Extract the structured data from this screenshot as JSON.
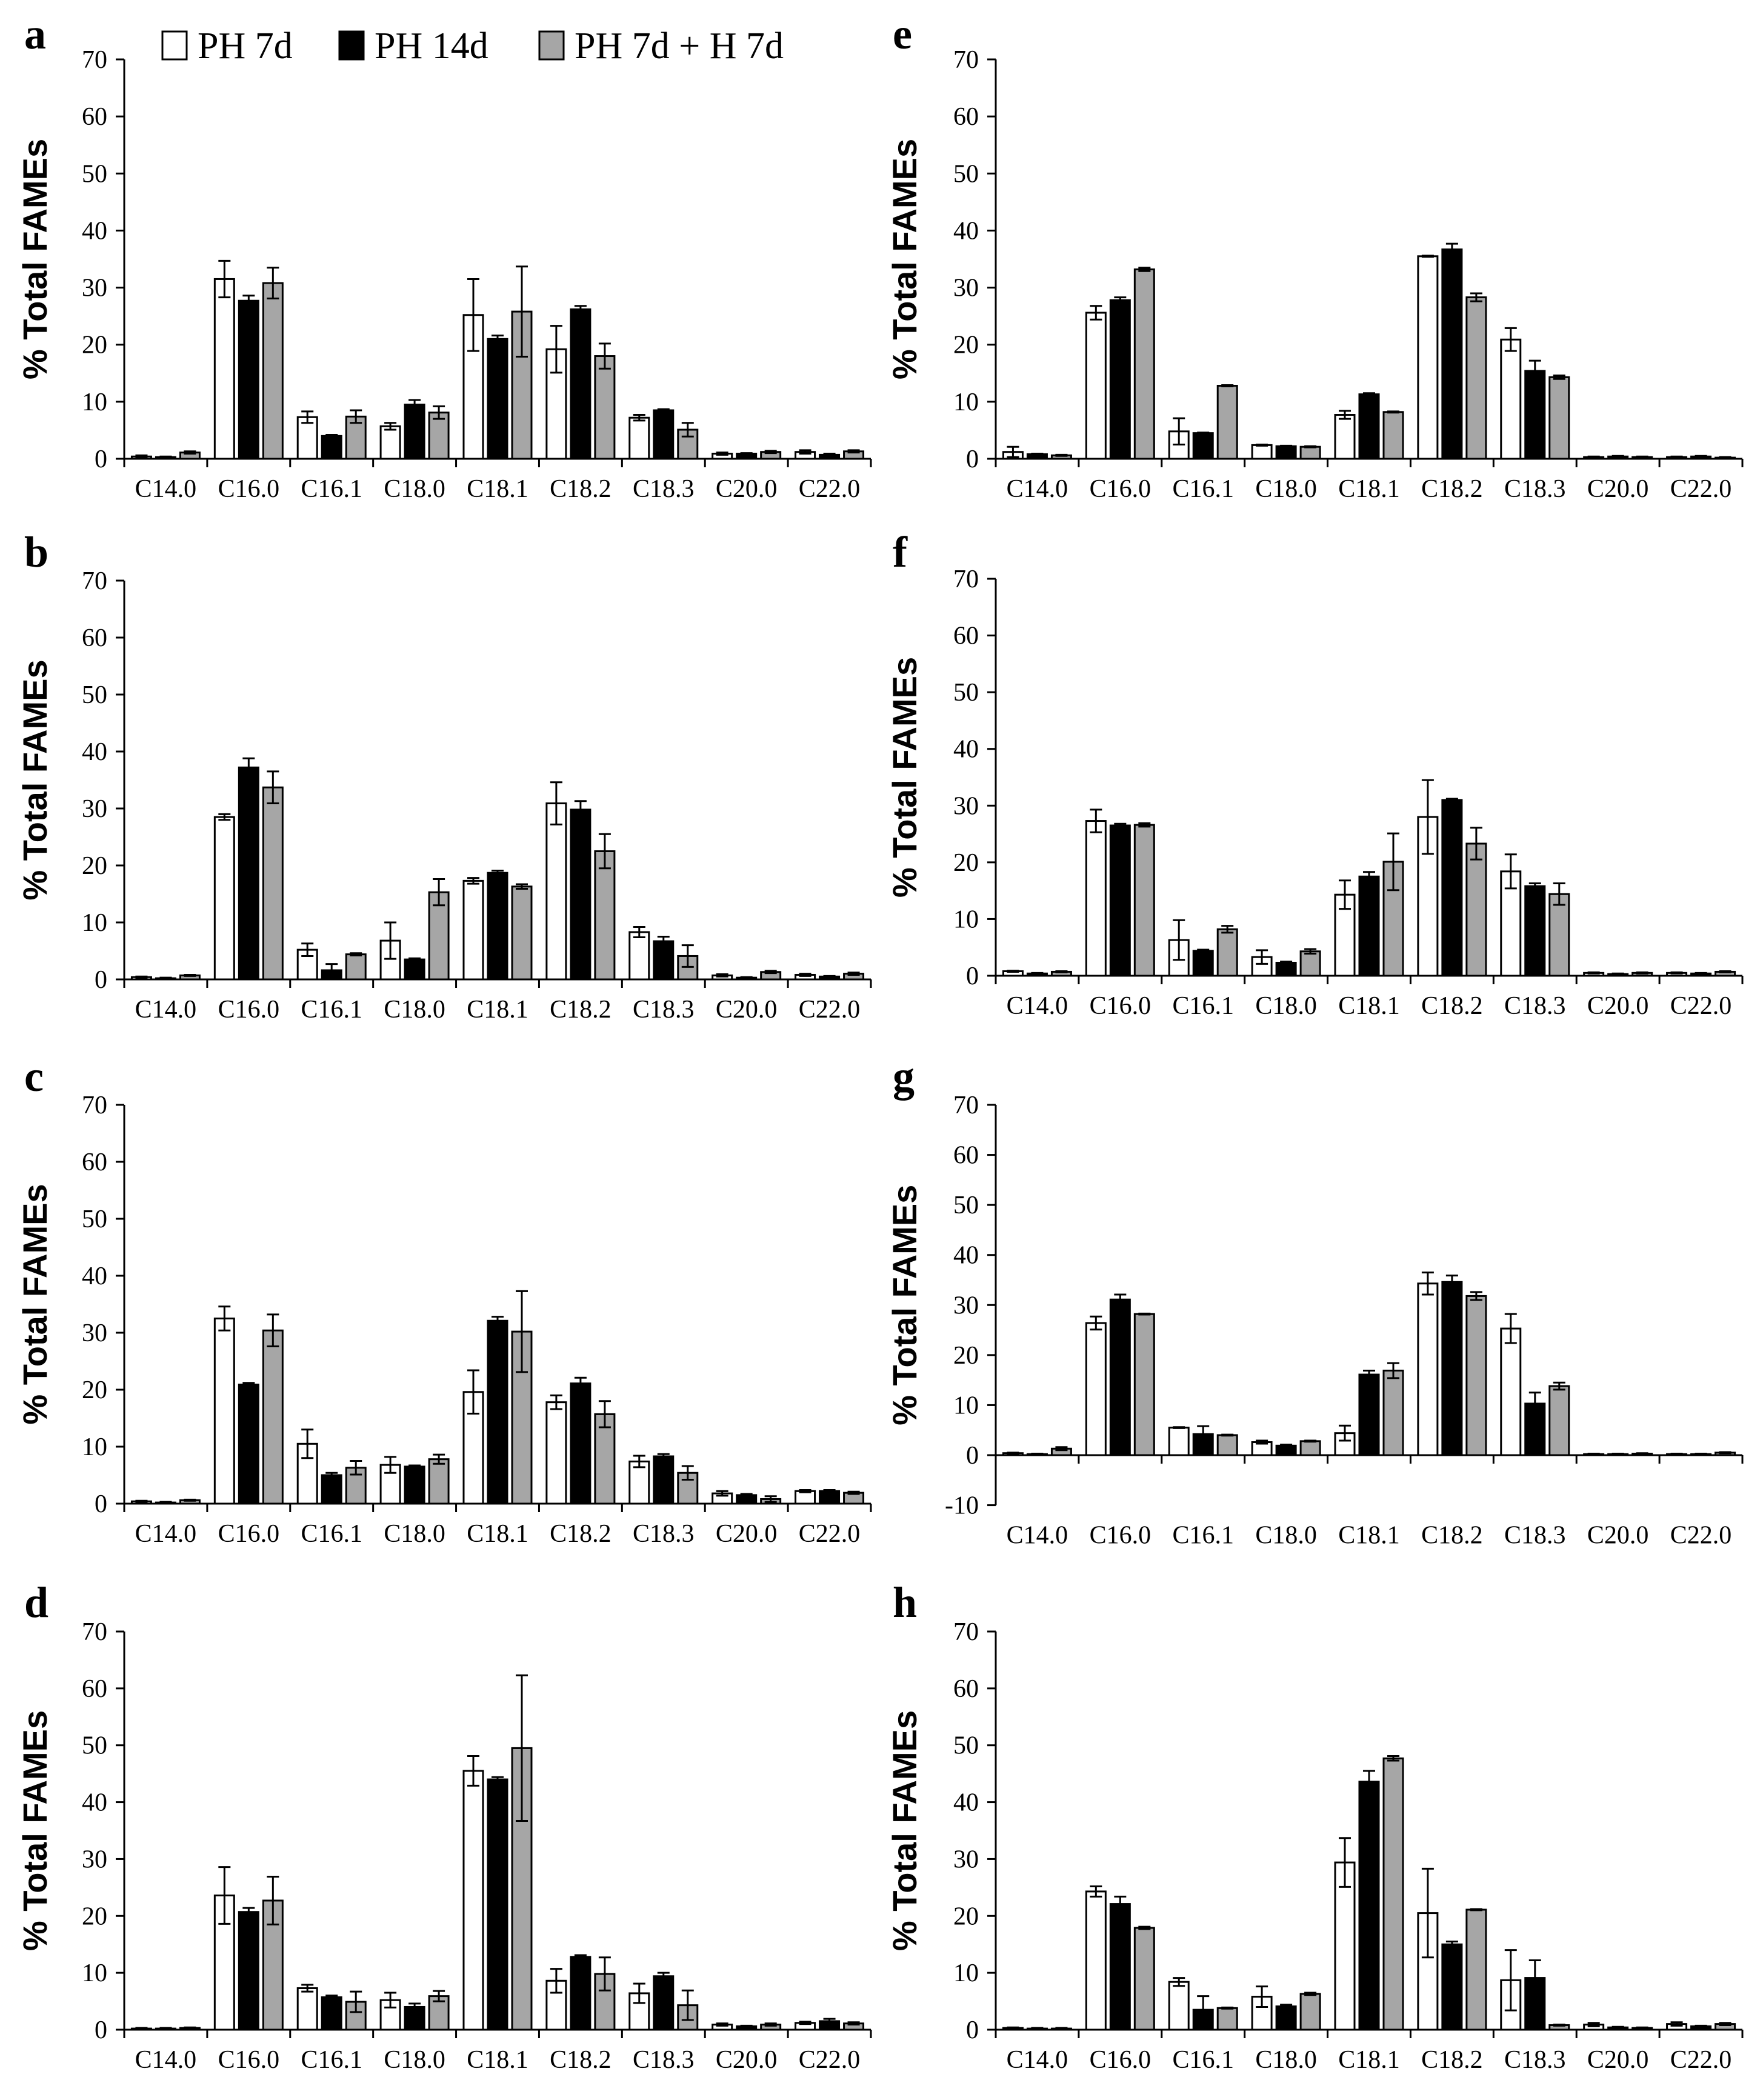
{
  "legend": {
    "series": [
      {
        "name": "PH 7d",
        "color": "#ffffff"
      },
      {
        "name": "PH 14d",
        "color": "#000000"
      },
      {
        "name": "PH 7d + H 7d",
        "color": "#a6a6a6"
      }
    ]
  },
  "chart_data": [
    {
      "panel": "a",
      "type": "bar",
      "categories": [
        "C14.0",
        "C16.0",
        "C16.1",
        "C18.0",
        "C18.1",
        "C18.2",
        "C18.3",
        "C20.0",
        "C22.0"
      ],
      "ylabel": "% Total FAMEs",
      "ylim": [
        0,
        70
      ],
      "yticks": [
        0,
        10,
        20,
        30,
        40,
        50,
        60,
        70
      ],
      "series": [
        {
          "name": "PH 7d",
          "values": [
            0.4,
            31.5,
            7.3,
            5.7,
            25.2,
            19.2,
            7.2,
            0.9,
            1.2
          ],
          "errors": [
            0.2,
            3.2,
            1.0,
            0.6,
            6.3,
            4.1,
            0.5,
            0.2,
            0.3
          ]
        },
        {
          "name": "PH 14d",
          "values": [
            0.3,
            27.7,
            4.0,
            9.5,
            21.0,
            26.2,
            8.5,
            0.9,
            0.7
          ],
          "errors": [
            0.1,
            0.9,
            0.2,
            0.8,
            0.6,
            0.6,
            0.2,
            0.1,
            0.2
          ]
        },
        {
          "name": "PH 7d + H 7d",
          "values": [
            1.1,
            30.8,
            7.4,
            8.1,
            25.8,
            18.0,
            5.1,
            1.2,
            1.3
          ],
          "errors": [
            0.2,
            2.7,
            1.1,
            1.1,
            7.9,
            2.2,
            1.2,
            0.2,
            0.2
          ]
        }
      ]
    },
    {
      "panel": "b",
      "type": "bar",
      "categories": [
        "C14.0",
        "C16.0",
        "C16.1",
        "C18.0",
        "C18.1",
        "C18.2",
        "C18.3",
        "C20.0",
        "C22.0"
      ],
      "ylabel": "% Total FAMEs",
      "ylim": [
        0,
        70
      ],
      "yticks": [
        0,
        10,
        20,
        30,
        40,
        50,
        60,
        70
      ],
      "series": [
        {
          "name": "PH 7d",
          "values": [
            0.4,
            28.5,
            5.2,
            6.8,
            17.3,
            30.9,
            8.3,
            0.7,
            0.8
          ],
          "errors": [
            0.1,
            0.5,
            1.1,
            3.2,
            0.5,
            3.7,
            0.9,
            0.2,
            0.2
          ]
        },
        {
          "name": "PH 14d",
          "values": [
            0.2,
            37.2,
            1.6,
            3.5,
            18.7,
            29.8,
            6.7,
            0.3,
            0.5
          ],
          "errors": [
            0.1,
            1.6,
            1.1,
            0.2,
            0.4,
            1.5,
            0.8,
            0.1,
            0.1
          ]
        },
        {
          "name": "PH 7d + H 7d",
          "values": [
            0.7,
            33.7,
            4.4,
            15.3,
            16.3,
            22.5,
            4.1,
            1.3,
            1.0
          ],
          "errors": [
            0.1,
            2.8,
            0.2,
            2.3,
            0.4,
            3.0,
            1.9,
            0.2,
            0.2
          ]
        }
      ]
    },
    {
      "panel": "c",
      "type": "bar",
      "categories": [
        "C14.0",
        "C16.0",
        "C16.1",
        "C18.0",
        "C18.1",
        "C18.2",
        "C18.3",
        "C20.0",
        "C22.0"
      ],
      "ylabel": "% Total FAMEs",
      "ylim": [
        0,
        70
      ],
      "yticks": [
        0,
        10,
        20,
        30,
        40,
        50,
        60,
        70
      ],
      "series": [
        {
          "name": "PH 7d",
          "values": [
            0.4,
            32.5,
            10.5,
            6.8,
            19.6,
            17.8,
            7.4,
            1.8,
            2.2
          ],
          "errors": [
            0.1,
            2.1,
            2.5,
            1.4,
            3.8,
            1.2,
            1.0,
            0.4,
            0.2
          ]
        },
        {
          "name": "PH 14d",
          "values": [
            0.2,
            20.9,
            5.0,
            6.5,
            32.1,
            21.1,
            8.3,
            1.5,
            2.2
          ],
          "errors": [
            0.1,
            0.3,
            0.4,
            0.2,
            0.7,
            1.0,
            0.4,
            0.2,
            0.2
          ]
        },
        {
          "name": "PH 7d + H 7d",
          "values": [
            0.6,
            30.4,
            6.3,
            7.8,
            30.2,
            15.7,
            5.4,
            0.8,
            1.9
          ],
          "errors": [
            0.1,
            2.8,
            1.2,
            0.8,
            7.1,
            2.3,
            1.2,
            0.5,
            0.2
          ]
        }
      ]
    },
    {
      "panel": "d",
      "type": "bar",
      "categories": [
        "C14.0",
        "C16.0",
        "C16.1",
        "C18.0",
        "C18.1",
        "C18.2",
        "C18.3",
        "C20.0",
        "C22.0"
      ],
      "ylabel": "% Total FAMEs",
      "ylim": [
        0,
        70
      ],
      "yticks": [
        0,
        10,
        20,
        30,
        40,
        50,
        60,
        70
      ],
      "series": [
        {
          "name": "PH 7d",
          "values": [
            0.2,
            23.6,
            7.3,
            5.2,
            45.5,
            8.6,
            6.4,
            0.9,
            1.2
          ],
          "errors": [
            0.1,
            5.0,
            0.6,
            1.3,
            2.6,
            2.1,
            1.7,
            0.2,
            0.2
          ]
        },
        {
          "name": "PH 14d",
          "values": [
            0.2,
            20.7,
            5.7,
            4.0,
            44.0,
            12.8,
            9.4,
            0.6,
            1.5
          ],
          "errors": [
            0.1,
            0.7,
            0.3,
            0.6,
            0.4,
            0.3,
            0.6,
            0.1,
            0.4
          ]
        },
        {
          "name": "PH 7d + H 7d",
          "values": [
            0.3,
            22.7,
            4.9,
            5.9,
            49.5,
            9.8,
            4.3,
            0.9,
            1.1
          ],
          "errors": [
            0.1,
            4.2,
            1.8,
            0.9,
            12.8,
            2.9,
            2.6,
            0.2,
            0.2
          ]
        }
      ]
    },
    {
      "panel": "e",
      "type": "bar",
      "categories": [
        "C14.0",
        "C16.0",
        "C16.1",
        "C18.0",
        "C18.1",
        "C18.2",
        "C18.3",
        "C20.0",
        "C22.0"
      ],
      "ylabel": "% Total FAMEs",
      "ylim": [
        0,
        70
      ],
      "yticks": [
        0,
        10,
        20,
        30,
        40,
        50,
        60,
        70
      ],
      "series": [
        {
          "name": "PH 7d",
          "values": [
            1.2,
            25.6,
            4.8,
            2.4,
            7.7,
            35.5,
            20.9,
            0.3,
            0.3
          ],
          "errors": [
            0.9,
            1.2,
            2.3,
            0.1,
            0.7,
            0.1,
            2.0,
            0.1,
            0.1
          ]
        },
        {
          "name": "PH 14d",
          "values": [
            0.8,
            27.8,
            4.5,
            2.2,
            11.3,
            36.7,
            15.4,
            0.4,
            0.4
          ],
          "errors": [
            0.1,
            0.5,
            0.1,
            0.1,
            0.2,
            1.0,
            1.8,
            0.1,
            0.1
          ]
        },
        {
          "name": "PH 7d + H 7d",
          "values": [
            0.6,
            33.2,
            12.8,
            2.1,
            8.2,
            28.3,
            14.3,
            0.3,
            0.2
          ],
          "errors": [
            0.1,
            0.3,
            0.1,
            0.1,
            0.1,
            0.7,
            0.3,
            0.1,
            0.1
          ]
        }
      ]
    },
    {
      "panel": "f",
      "type": "bar",
      "categories": [
        "C14.0",
        "C16.0",
        "C16.1",
        "C18.0",
        "C18.1",
        "C18.2",
        "C18.3",
        "C20.0",
        "C22.0"
      ],
      "ylabel": "% Total FAMEs",
      "ylim": [
        0,
        70
      ],
      "yticks": [
        0,
        10,
        20,
        30,
        40,
        50,
        60,
        70
      ],
      "series": [
        {
          "name": "PH 7d",
          "values": [
            0.8,
            27.3,
            6.3,
            3.3,
            14.3,
            28.0,
            18.4,
            0.5,
            0.5
          ],
          "errors": [
            0.1,
            2.0,
            3.5,
            1.2,
            2.5,
            6.5,
            3.0,
            0.1,
            0.1
          ]
        },
        {
          "name": "PH 14d",
          "values": [
            0.4,
            26.5,
            4.4,
            2.3,
            17.5,
            31.0,
            15.8,
            0.3,
            0.4
          ],
          "errors": [
            0.1,
            0.3,
            0.2,
            0.2,
            0.8,
            0.2,
            0.5,
            0.1,
            0.1
          ]
        },
        {
          "name": "PH 7d + H 7d",
          "values": [
            0.7,
            26.6,
            8.2,
            4.3,
            20.1,
            23.3,
            14.4,
            0.5,
            0.7
          ],
          "errors": [
            0.1,
            0.3,
            0.6,
            0.4,
            5.0,
            2.8,
            1.9,
            0.1,
            0.1
          ]
        }
      ]
    },
    {
      "panel": "g",
      "type": "bar",
      "categories": [
        "C14.0",
        "C16.0",
        "C16.1",
        "C18.0",
        "C18.1",
        "C18.2",
        "C18.3",
        "C20.0",
        "C22.0"
      ],
      "ylabel": "% Total FAMEs",
      "ylim": [
        -10,
        70
      ],
      "yticks": [
        -10,
        0,
        10,
        20,
        30,
        40,
        50,
        60,
        70
      ],
      "series": [
        {
          "name": "PH 7d",
          "values": [
            0.4,
            26.4,
            5.5,
            2.6,
            4.4,
            34.3,
            25.3,
            0.2,
            0.2
          ],
          "errors": [
            0.1,
            1.3,
            0.1,
            0.3,
            1.5,
            2.2,
            2.9,
            0.1,
            0.1
          ]
        },
        {
          "name": "PH 14d",
          "values": [
            0.2,
            31.1,
            4.2,
            1.9,
            16.1,
            34.6,
            10.3,
            0.2,
            0.2
          ],
          "errors": [
            0.1,
            1.0,
            1.6,
            0.2,
            0.8,
            1.3,
            2.2,
            0.1,
            0.1
          ]
        },
        {
          "name": "PH 7d + H 7d",
          "values": [
            1.3,
            28.2,
            4.0,
            2.8,
            16.9,
            31.8,
            13.8,
            0.3,
            0.5
          ],
          "errors": [
            0.3,
            0.1,
            0.1,
            0.1,
            1.5,
            0.8,
            0.7,
            0.1,
            0.1
          ]
        }
      ]
    },
    {
      "panel": "h",
      "type": "bar",
      "categories": [
        "C14.0",
        "C16.0",
        "C16.1",
        "C18.0",
        "C18.1",
        "C18.2",
        "C18.3",
        "C20.0",
        "C22.0"
      ],
      "ylabel": "% Total FAMEs",
      "ylim": [
        0,
        70
      ],
      "yticks": [
        0,
        10,
        20,
        30,
        40,
        50,
        60,
        70
      ],
      "series": [
        {
          "name": "PH 7d",
          "values": [
            0.3,
            24.3,
            8.4,
            5.8,
            29.4,
            20.5,
            8.7,
            0.9,
            1.0
          ],
          "errors": [
            0.1,
            0.9,
            0.7,
            1.8,
            4.3,
            7.8,
            5.3,
            0.3,
            0.3
          ]
        },
        {
          "name": "PH 14d",
          "values": [
            0.2,
            22.1,
            3.5,
            4.1,
            43.6,
            15.0,
            9.1,
            0.4,
            0.6
          ],
          "errors": [
            0.1,
            1.3,
            2.4,
            0.3,
            1.9,
            0.5,
            3.1,
            0.1,
            0.1
          ]
        },
        {
          "name": "PH 7d + H 7d",
          "values": [
            0.2,
            17.9,
            3.8,
            6.3,
            47.7,
            21.1,
            0.8,
            0.3,
            1.0
          ],
          "errors": [
            0.1,
            0.2,
            0.1,
            0.2,
            0.4,
            0.1,
            0.1,
            0.1,
            0.2
          ]
        }
      ]
    }
  ]
}
